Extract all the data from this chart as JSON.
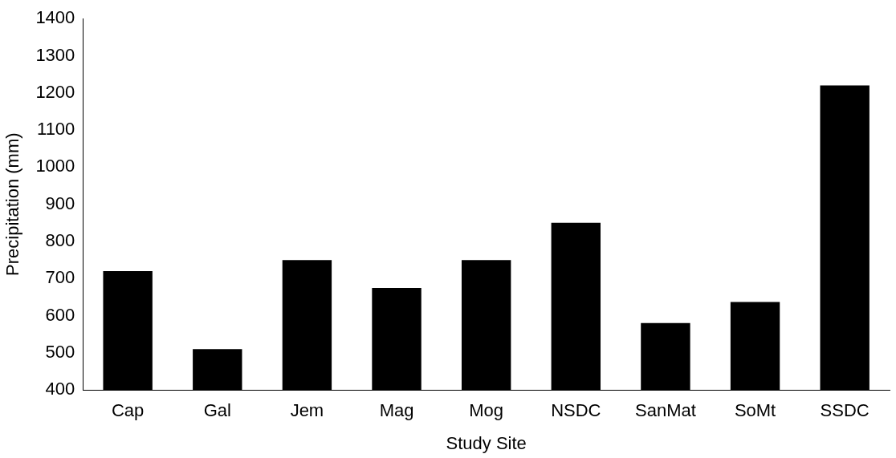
{
  "chart_data": {
    "type": "bar",
    "xlabel": "Study Site",
    "ylabel": "Precipitation (mm)",
    "categories": [
      "Cap",
      "Gal",
      "Jem",
      "Mag",
      "Mog",
      "NSDC",
      "SanMat",
      "SoMt",
      "SSDC"
    ],
    "values": [
      720,
      510,
      750,
      675,
      750,
      850,
      580,
      637,
      1220
    ],
    "color": "#000000",
    "ylim": [
      400,
      1400
    ],
    "yticks": [
      400,
      500,
      600,
      700,
      800,
      900,
      1000,
      1100,
      1200,
      1300,
      1400
    ],
    "grid": false,
    "legend": false
  }
}
